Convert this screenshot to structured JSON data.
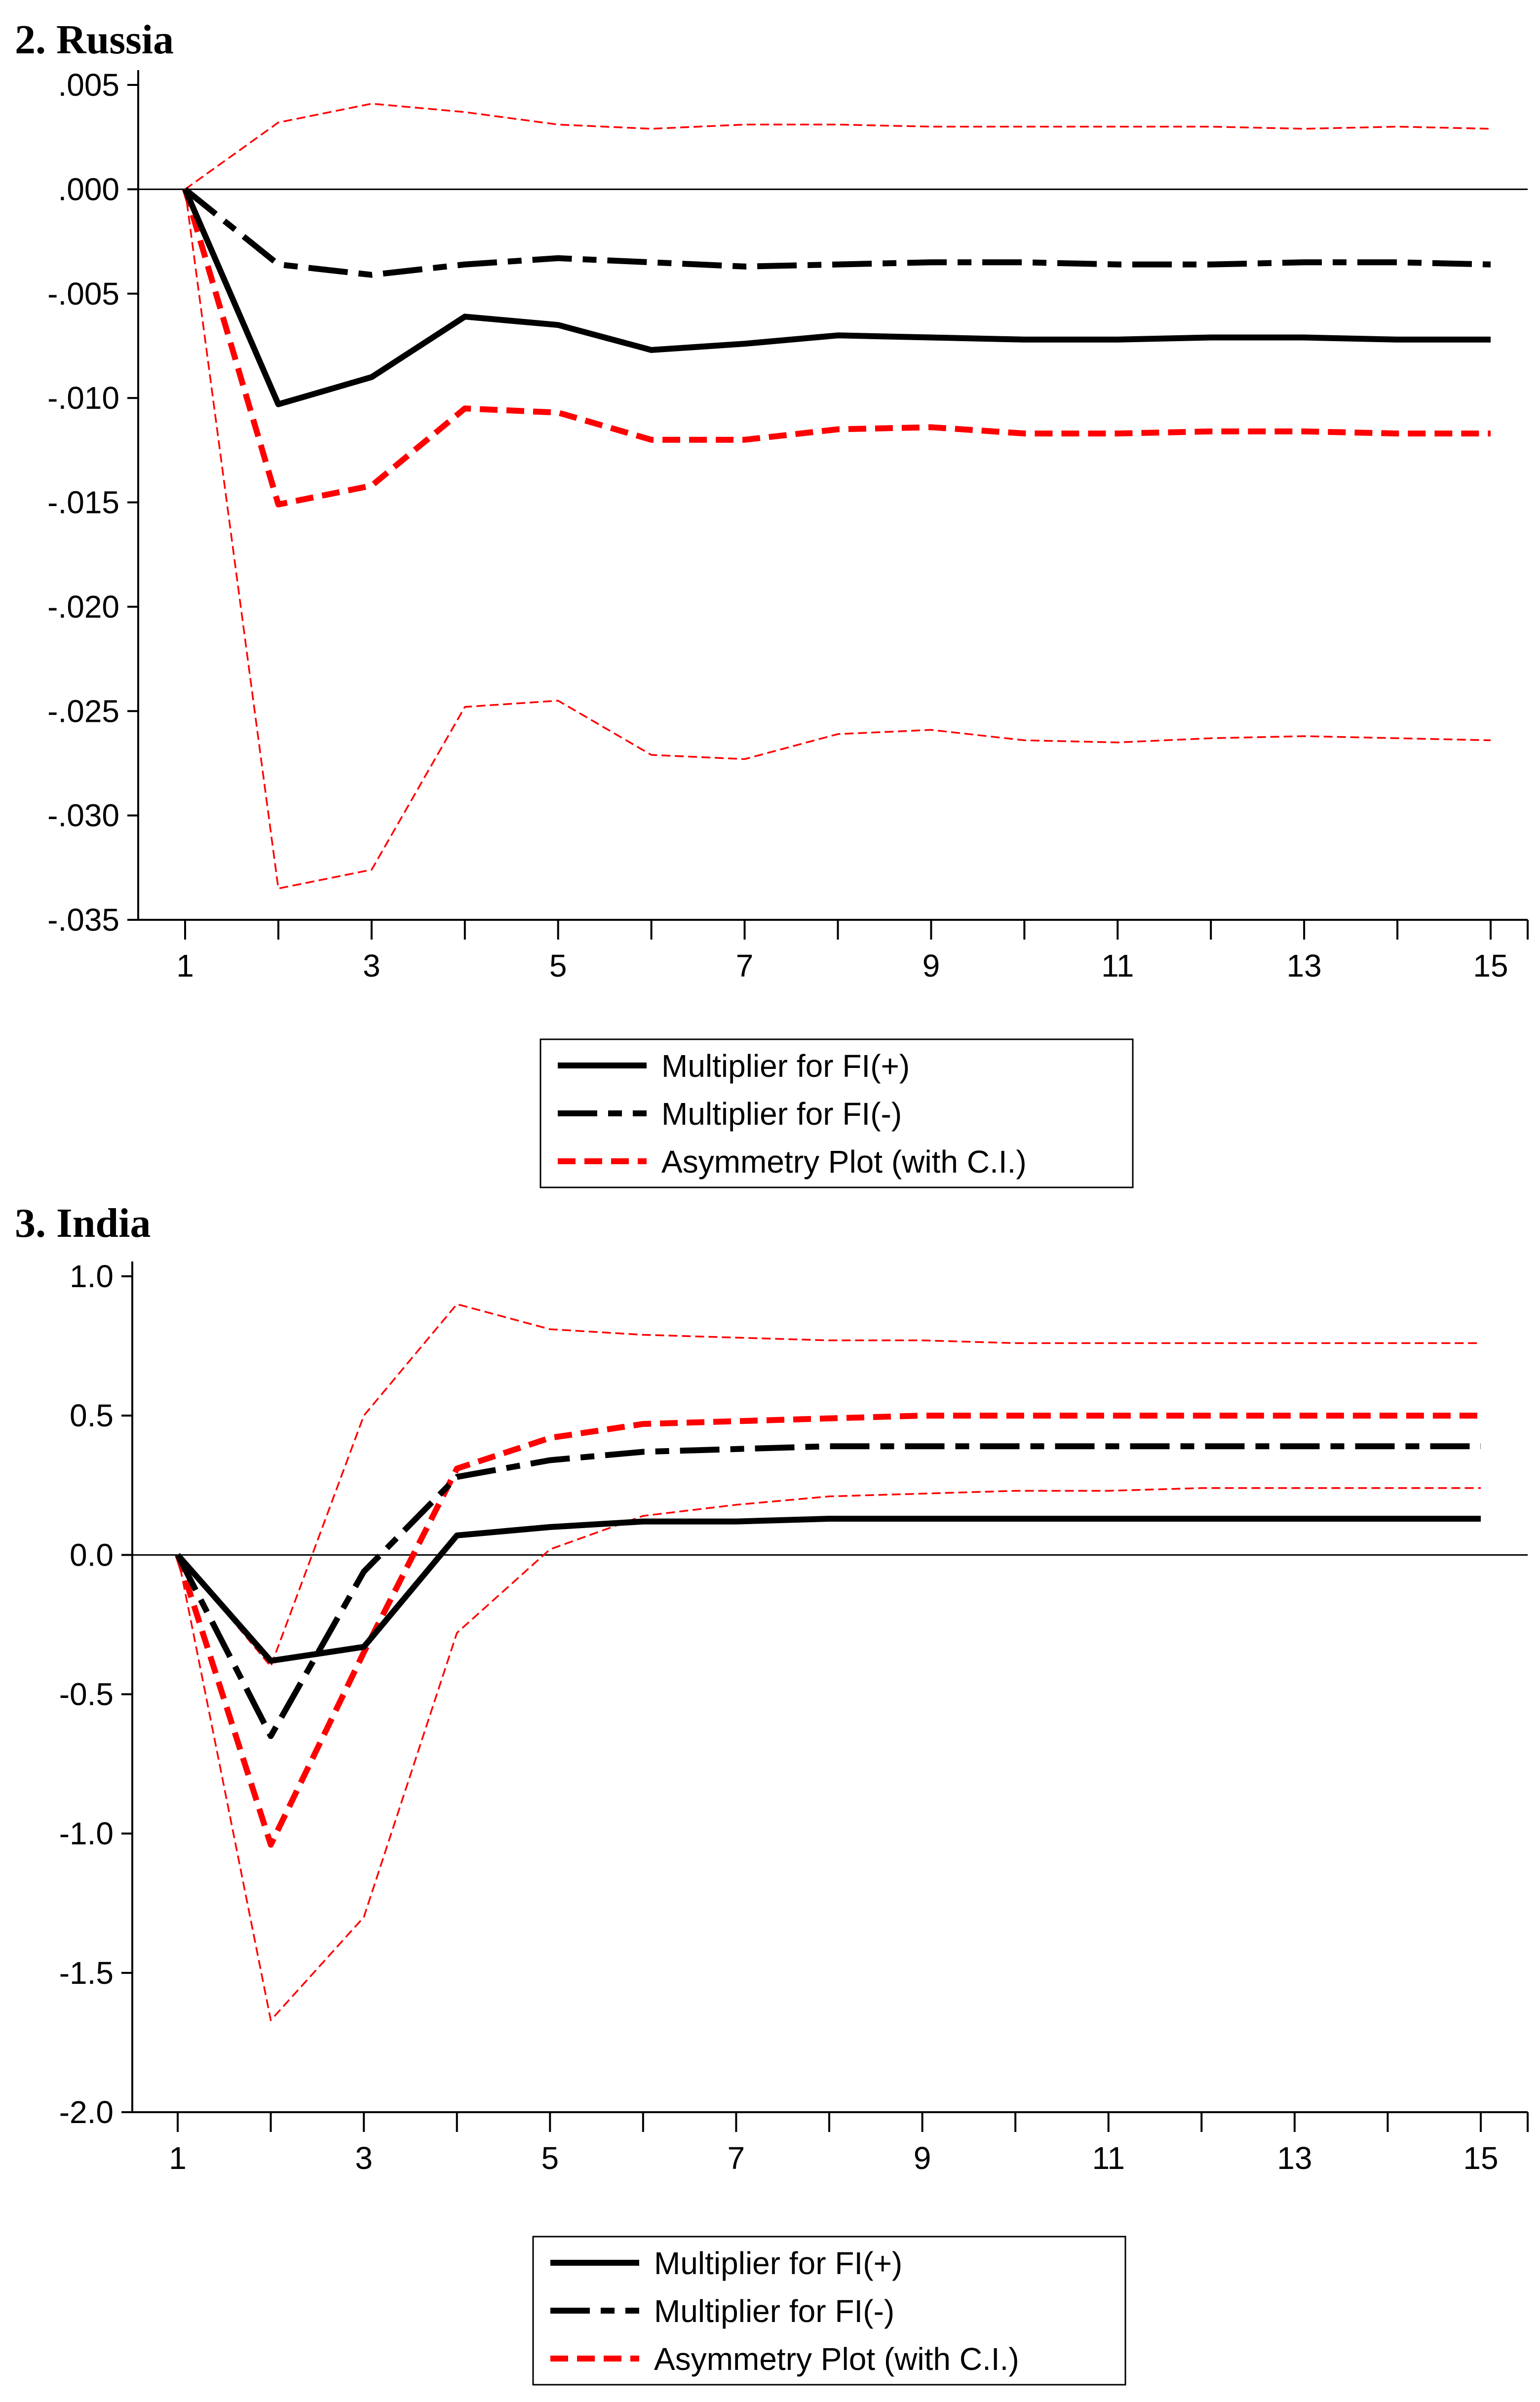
{
  "chart_data": [
    {
      "type": "line",
      "title": "2. Russia",
      "x": [
        1,
        2,
        3,
        4,
        5,
        6,
        7,
        8,
        9,
        10,
        11,
        12,
        13,
        14,
        15
      ],
      "xticks": [
        1,
        3,
        5,
        7,
        9,
        11,
        13,
        15
      ],
      "ylim": [
        -0.035,
        0.005
      ],
      "yticks": [
        0.005,
        0.0,
        -0.005,
        -0.01,
        -0.015,
        -0.02,
        -0.025,
        -0.03,
        -0.035
      ],
      "ytick_labels": [
        ".005",
        ".000",
        "-.005",
        "-.010",
        "-.015",
        "-.020",
        "-.025",
        "-.030",
        "-.035"
      ],
      "zero_line": true,
      "legend_position": "bottom-center",
      "series": [
        {
          "name": "Multiplier for FI(+)",
          "style": "solid",
          "color": "#000000",
          "values": [
            0.0,
            -0.0103,
            -0.009,
            -0.0061,
            -0.0065,
            -0.0077,
            -0.0074,
            -0.007,
            -0.0071,
            -0.0072,
            -0.0072,
            -0.0071,
            -0.0071,
            -0.0072,
            -0.0072
          ]
        },
        {
          "name": "Multiplier for FI(-)",
          "style": "longdash",
          "color": "#000000",
          "values": [
            0.0,
            -0.0036,
            -0.0041,
            -0.0036,
            -0.0033,
            -0.0035,
            -0.0037,
            -0.0036,
            -0.0035,
            -0.0035,
            -0.0036,
            -0.0036,
            -0.0035,
            -0.0035,
            -0.0036
          ]
        },
        {
          "name": "Asymmetry Plot (with C.I.)",
          "style": "dash",
          "color": "#ff0000",
          "values": [
            0.0,
            -0.0151,
            -0.0142,
            -0.0105,
            -0.0107,
            -0.012,
            -0.012,
            -0.0115,
            -0.0114,
            -0.0117,
            -0.0117,
            -0.0116,
            -0.0116,
            -0.0117,
            -0.0117
          ]
        },
        {
          "name": "Upper C.I.",
          "style": "thin-dash",
          "color": "#ff0000",
          "in_legend": false,
          "values": [
            0.0,
            0.0032,
            0.0041,
            0.0037,
            0.0031,
            0.0029,
            0.0031,
            0.0031,
            0.003,
            0.003,
            0.003,
            0.003,
            0.0029,
            0.003,
            0.0029
          ]
        },
        {
          "name": "Lower C.I.",
          "style": "thin-dash",
          "color": "#ff0000",
          "in_legend": false,
          "values": [
            0.0,
            -0.0335,
            -0.0326,
            -0.0248,
            -0.0245,
            -0.0271,
            -0.0273,
            -0.0261,
            -0.0259,
            -0.0264,
            -0.0265,
            -0.0263,
            -0.0262,
            -0.0263,
            -0.0264
          ]
        }
      ]
    },
    {
      "type": "line",
      "title": "3. India",
      "x": [
        1,
        2,
        3,
        4,
        5,
        6,
        7,
        8,
        9,
        10,
        11,
        12,
        13,
        14,
        15
      ],
      "xticks": [
        1,
        3,
        5,
        7,
        9,
        11,
        13,
        15
      ],
      "ylim": [
        -2.0,
        1.0
      ],
      "yticks": [
        1.0,
        0.5,
        0.0,
        -0.5,
        -1.0,
        -1.5,
        -2.0
      ],
      "ytick_labels": [
        "1.0",
        "0.5",
        "0.0",
        "-0.5",
        "-1.0",
        "-1.5",
        "-2.0"
      ],
      "zero_line": true,
      "legend_position": "bottom-center",
      "series": [
        {
          "name": "Multiplier for FI(+)",
          "style": "solid",
          "color": "#000000",
          "values": [
            0.0,
            -0.38,
            -0.33,
            0.07,
            0.1,
            0.12,
            0.12,
            0.13,
            0.13,
            0.13,
            0.13,
            0.13,
            0.13,
            0.13,
            0.13
          ]
        },
        {
          "name": "Multiplier for FI(-)",
          "style": "longdash",
          "color": "#000000",
          "values": [
            0.0,
            -0.65,
            -0.06,
            0.28,
            0.34,
            0.37,
            0.38,
            0.39,
            0.39,
            0.39,
            0.39,
            0.39,
            0.39,
            0.39,
            0.39
          ]
        },
        {
          "name": "Asymmetry Plot (with C.I.)",
          "style": "dash",
          "color": "#ff0000",
          "values": [
            0.0,
            -1.04,
            -0.35,
            0.31,
            0.42,
            0.47,
            0.48,
            0.49,
            0.5,
            0.5,
            0.5,
            0.5,
            0.5,
            0.5,
            0.5
          ]
        },
        {
          "name": "Upper C.I.",
          "style": "thin-dash",
          "color": "#ff0000",
          "in_legend": false,
          "values": [
            0.0,
            -0.4,
            0.5,
            0.9,
            0.81,
            0.79,
            0.78,
            0.77,
            0.77,
            0.76,
            0.76,
            0.76,
            0.76,
            0.76,
            0.76
          ]
        },
        {
          "name": "Lower C.I.",
          "style": "thin-dash",
          "color": "#ff0000",
          "in_legend": false,
          "values": [
            0.0,
            -1.67,
            -1.3,
            -0.28,
            0.02,
            0.14,
            0.18,
            0.21,
            0.22,
            0.23,
            0.23,
            0.24,
            0.24,
            0.24,
            0.24
          ]
        }
      ]
    }
  ]
}
